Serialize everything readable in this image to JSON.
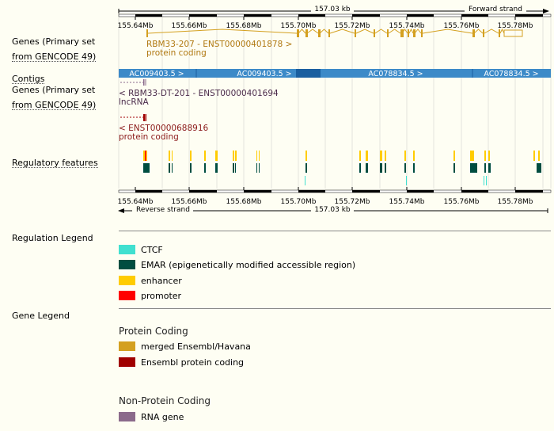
{
  "top_ruler": {
    "length_label": "157.03 kb",
    "strand_label": "Forward strand"
  },
  "bottom_ruler": {
    "length_label": "157.03 kb",
    "strand_label": "Reverse strand"
  },
  "scale_ticks": [
    "155.64Mb",
    "155.66Mb",
    "155.68Mb",
    "155.70Mb",
    "155.72Mb",
    "155.74Mb",
    "155.76Mb",
    "155.78Mb"
  ],
  "track_labels": {
    "genes_forward": [
      "Genes (Primary set",
      "from GENCODE 49)"
    ],
    "contigs": "Contigs",
    "genes_reverse": [
      "Genes (Primary set",
      "from GENCODE 49)"
    ],
    "regulatory": "Regulatory features"
  },
  "forward_gene": {
    "name": "RBM33-207 - ENST00000401878 >",
    "biotype": "protein coding"
  },
  "contigs": [
    {
      "label": "AC009403.5 >"
    },
    {
      "label": "AC009403.5 >"
    },
    {
      "label": "AC078834.5 >"
    },
    {
      "label": "AC078834.5 >"
    }
  ],
  "reverse_genes": [
    {
      "name": "< RBM33-DT-201 - ENST00000401694",
      "biotype": "lncRNA"
    },
    {
      "name": "< ENST00000688916",
      "biotype": "protein coding"
    }
  ],
  "regulation_legend": {
    "title": "Regulation Legend",
    "items": [
      {
        "label": "CTCF",
        "color": "#40e0d0"
      },
      {
        "label": "EMAR (epigenetically modified accessible region)",
        "color": "#004d40"
      },
      {
        "label": "enhancer",
        "color": "#ffcc00"
      },
      {
        "label": "promoter",
        "color": "#ff0000"
      }
    ]
  },
  "gene_legend": {
    "title": "Gene Legend",
    "sections": [
      {
        "heading": "Protein Coding",
        "items": [
          {
            "label": "merged Ensembl/Havana",
            "color": "#d4a020"
          },
          {
            "label": "Ensembl protein coding",
            "color": "#a00000"
          }
        ]
      },
      {
        "heading": "Non-Protein Coding",
        "items": [
          {
            "label": "RNA gene",
            "color": "#8b6a8b"
          }
        ]
      }
    ]
  },
  "colors": {
    "background": "#fefef3",
    "contig_blue": "#3c8ac8",
    "contig_dark": "#1a5fa0",
    "merged_gene": "#d4a020",
    "lncrna": "#8b6a8b",
    "ensembl_pc": "#a00000",
    "lncrna_text": "#4a2a4a",
    "pc_text": "#8b1a1a",
    "gene_label": "#b07810"
  }
}
